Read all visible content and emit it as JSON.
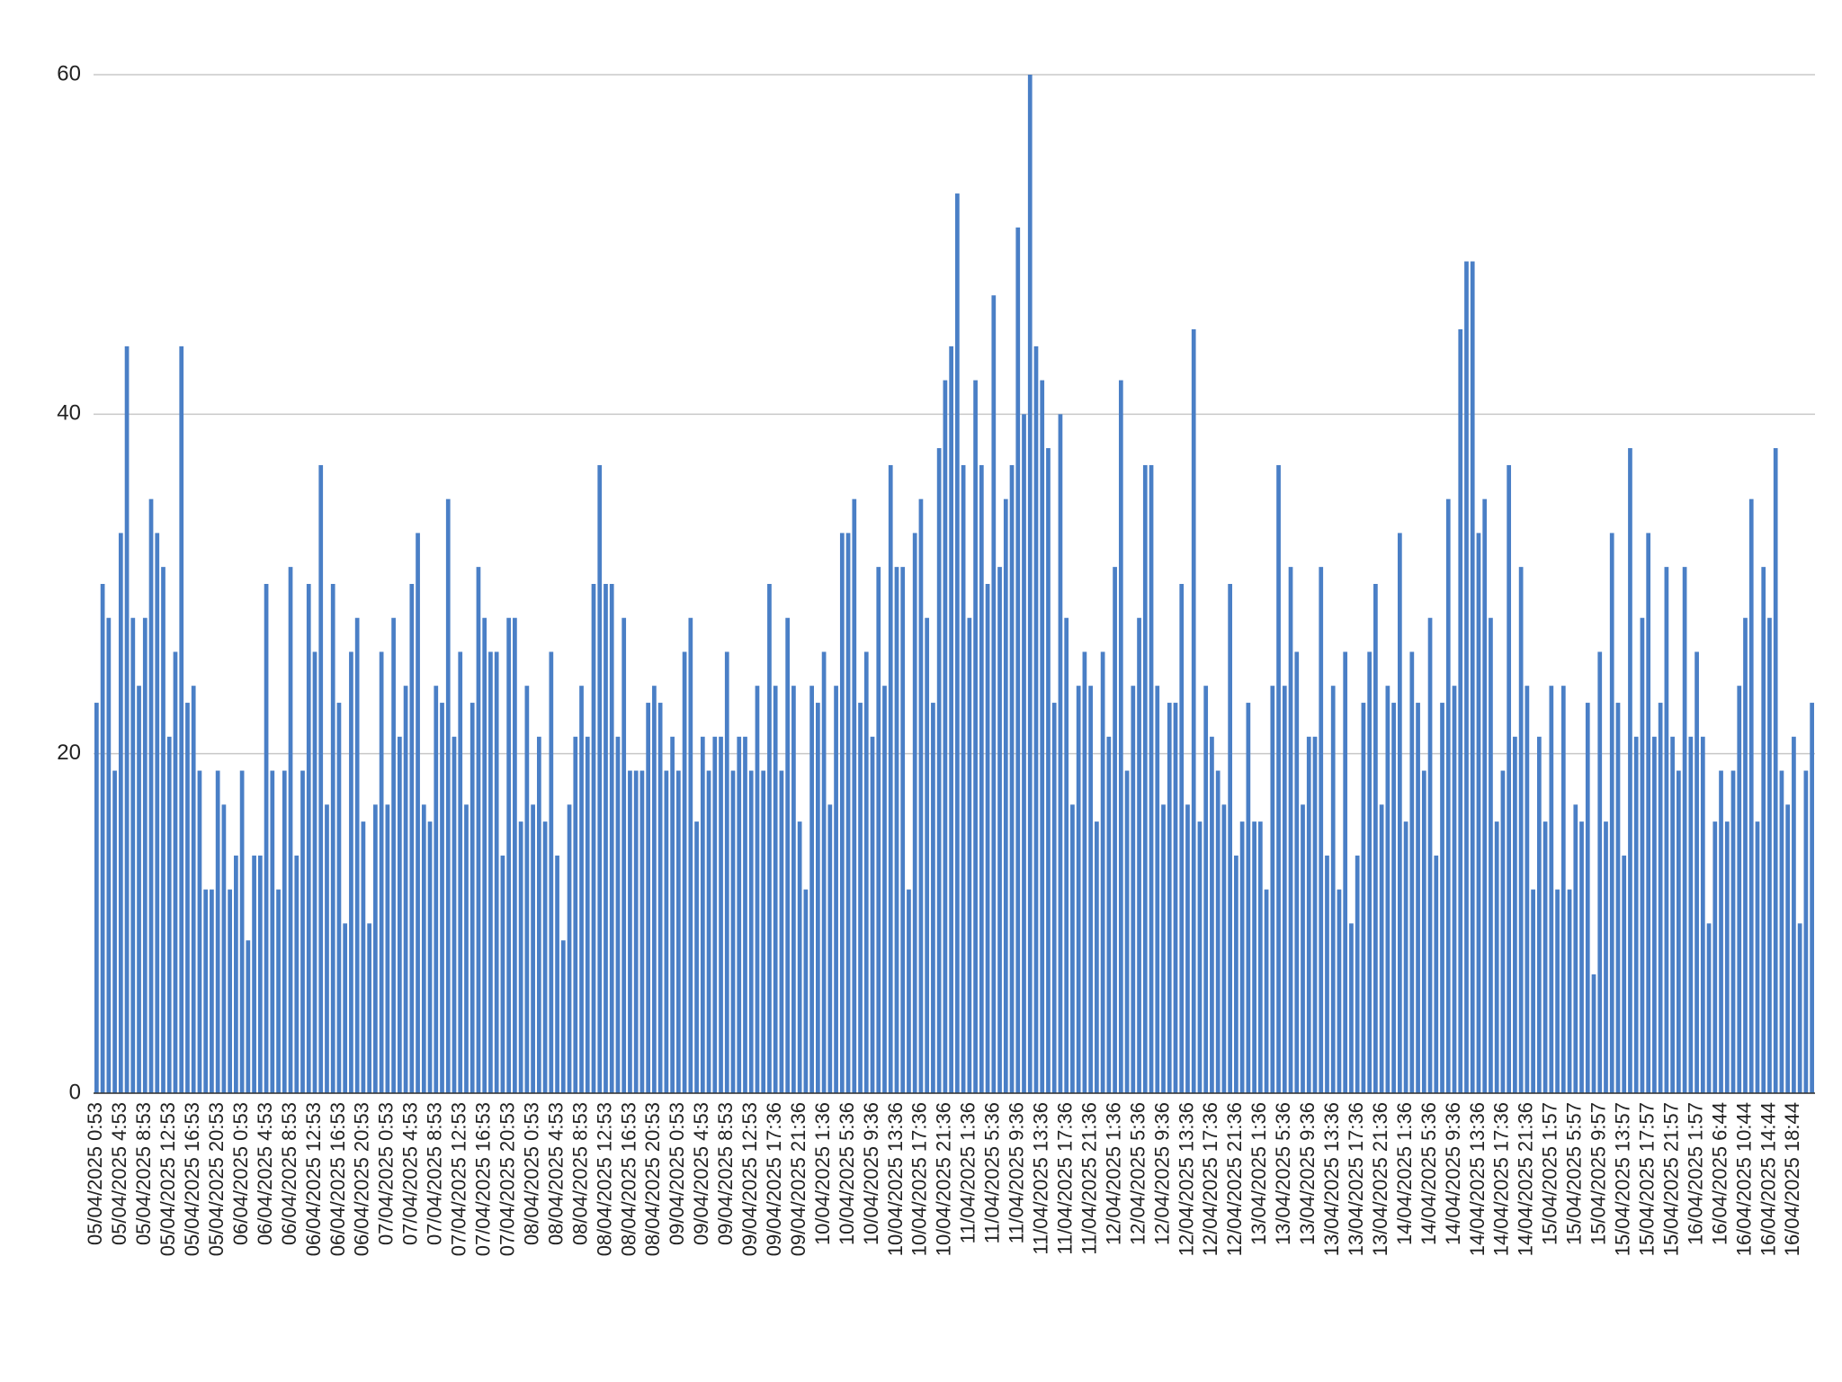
{
  "chart_data": {
    "type": "bar",
    "color": "#4a7fc6",
    "grid": true,
    "ylim": [
      0,
      60
    ],
    "yticks": [
      0,
      20,
      40,
      60
    ],
    "categories": [
      "05/04/2025 0:53",
      null,
      null,
      null,
      "05/04/2025 4:53",
      null,
      null,
      null,
      "05/04/2025 8:53",
      null,
      null,
      null,
      "05/04/2025 12:53",
      null,
      null,
      null,
      "05/04/2025 16:53",
      null,
      null,
      null,
      "05/04/2025 20:53",
      null,
      null,
      null,
      "06/04/2025 0:53",
      null,
      null,
      null,
      "06/04/2025 4:53",
      null,
      null,
      null,
      "06/04/2025 8:53",
      null,
      null,
      null,
      "06/04/2025 12:53",
      null,
      null,
      null,
      "06/04/2025 16:53",
      null,
      null,
      null,
      "06/04/2025 20:53",
      null,
      null,
      null,
      "07/04/2025 0:53",
      null,
      null,
      null,
      "07/04/2025 4:53",
      null,
      null,
      null,
      "07/04/2025 8:53",
      null,
      null,
      null,
      "07/04/2025 12:53",
      null,
      null,
      null,
      "07/04/2025 16:53",
      null,
      null,
      null,
      "07/04/2025 20:53",
      null,
      null,
      null,
      "08/04/2025 0:53",
      null,
      null,
      null,
      "08/04/2025 4:53",
      null,
      null,
      null,
      "08/04/2025 8:53",
      null,
      null,
      null,
      "08/04/2025 12:53",
      null,
      null,
      null,
      "08/04/2025 16:53",
      null,
      null,
      null,
      "08/04/2025 20:53",
      null,
      null,
      null,
      "09/04/2025 0:53",
      null,
      null,
      null,
      "09/04/2025 4:53",
      null,
      null,
      null,
      "09/04/2025 8:53",
      null,
      null,
      null,
      "09/04/2025 12:53",
      null,
      null,
      null,
      "09/04/2025 17:36",
      null,
      null,
      null,
      "09/04/2025 21:36",
      null,
      null,
      null,
      "10/04/2025 1:36",
      null,
      null,
      null,
      "10/04/2025 5:36",
      null,
      null,
      null,
      "10/04/2025 9:36",
      null,
      null,
      null,
      "10/04/2025 13:36",
      null,
      null,
      null,
      "10/04/2025 17:36",
      null,
      null,
      null,
      "10/04/2025 21:36",
      null,
      null,
      null,
      "11/04/2025 1:36",
      null,
      null,
      null,
      "11/04/2025 5:36",
      null,
      null,
      null,
      "11/04/2025 9:36",
      null,
      null,
      null,
      "11/04/2025 13:36",
      null,
      null,
      null,
      "11/04/2025 17:36",
      null,
      null,
      null,
      "11/04/2025 21:36",
      null,
      null,
      null,
      "12/04/2025 1:36",
      null,
      null,
      null,
      "12/04/2025 5:36",
      null,
      null,
      null,
      "12/04/2025 9:36",
      null,
      null,
      null,
      "12/04/2025 13:36",
      null,
      null,
      null,
      "12/04/2025 17:36",
      null,
      null,
      null,
      "12/04/2025 21:36",
      null,
      null,
      null,
      "13/04/2025 1:36",
      null,
      null,
      null,
      "13/04/2025 5:36",
      null,
      null,
      null,
      "13/04/2025 9:36",
      null,
      null,
      null,
      "13/04/2025 13:36",
      null,
      null,
      null,
      "13/04/2025 17:36",
      null,
      null,
      null,
      "13/04/2025 21:36",
      null,
      null,
      null,
      "14/04/2025 1:36",
      null,
      null,
      null,
      "14/04/2025 5:36",
      null,
      null,
      null,
      "14/04/2025 9:36",
      null,
      null,
      null,
      "14/04/2025 13:36",
      null,
      null,
      null,
      "14/04/2025 17:36",
      null,
      null,
      null,
      "14/04/2025 21:36",
      null,
      null,
      null,
      "15/04/2025 1:57",
      null,
      null,
      null,
      "15/04/2025 5:57",
      null,
      null,
      null,
      "15/04/2025 9:57",
      null,
      null,
      null,
      "15/04/2025 13:57",
      null,
      null,
      null,
      "15/04/2025 17:57",
      null,
      null,
      null,
      "15/04/2025 21:57",
      null,
      null,
      null,
      "16/04/2025 1:57",
      null,
      null,
      null,
      "16/04/2025 6:44",
      null,
      null,
      null,
      "16/04/2025 10:44",
      null,
      null,
      null,
      "16/04/2025 14:44",
      null,
      null,
      null,
      "16/04/2025 18:44",
      null,
      null,
      null
    ],
    "values": [
      23,
      30,
      28,
      19,
      33,
      44,
      28,
      24,
      28,
      35,
      33,
      31,
      21,
      26,
      44,
      23,
      24,
      19,
      12,
      12,
      19,
      17,
      12,
      14,
      19,
      9,
      14,
      14,
      30,
      19,
      12,
      19,
      31,
      14,
      19,
      30,
      26,
      37,
      17,
      30,
      23,
      10,
      26,
      28,
      16,
      10,
      17,
      26,
      17,
      28,
      21,
      24,
      30,
      33,
      17,
      16,
      24,
      23,
      35,
      21,
      26,
      17,
      23,
      31,
      28,
      26,
      26,
      14,
      28,
      28,
      16,
      24,
      17,
      21,
      16,
      26,
      14,
      9,
      17,
      21,
      24,
      21,
      30,
      37,
      30,
      30,
      21,
      28,
      19,
      19,
      19,
      23,
      24,
      23,
      19,
      21,
      19,
      26,
      28,
      16,
      21,
      19,
      21,
      21,
      26,
      19,
      21,
      21,
      19,
      24,
      19,
      30,
      24,
      19,
      28,
      24,
      16,
      12,
      24,
      23,
      26,
      17,
      24,
      33,
      33,
      35,
      23,
      26,
      21,
      31,
      24,
      37,
      31,
      31,
      12,
      33,
      35,
      28,
      23,
      38,
      42,
      44,
      53,
      37,
      28,
      42,
      37,
      30,
      47,
      31,
      35,
      37,
      51,
      40,
      60,
      44,
      42,
      38,
      23,
      40,
      28,
      17,
      24,
      26,
      24,
      16,
      26,
      21,
      31,
      42,
      19,
      24,
      28,
      37,
      37,
      24,
      17,
      23,
      23,
      30,
      17,
      45,
      16,
      24,
      21,
      19,
      17,
      30,
      14,
      16,
      23,
      16,
      16,
      12,
      24,
      37,
      24,
      31,
      26,
      17,
      21,
      21,
      31,
      14,
      24,
      12,
      26,
      10,
      14,
      23,
      26,
      30,
      17,
      24,
      23,
      33,
      16,
      26,
      23,
      19,
      28,
      14,
      23,
      35,
      24,
      45,
      49,
      49,
      33,
      35,
      28,
      16,
      19,
      37,
      21,
      31,
      24,
      12,
      21,
      16,
      24,
      12,
      24,
      12,
      17,
      16,
      23,
      7,
      26,
      16,
      33,
      23,
      14,
      38,
      21,
      28,
      33,
      21,
      23,
      31,
      21,
      19,
      31,
      21,
      26,
      21,
      10,
      16,
      19,
      16,
      19,
      24,
      28,
      35,
      16,
      31,
      28,
      38,
      19,
      17,
      21,
      10,
      19,
      23
    ]
  }
}
